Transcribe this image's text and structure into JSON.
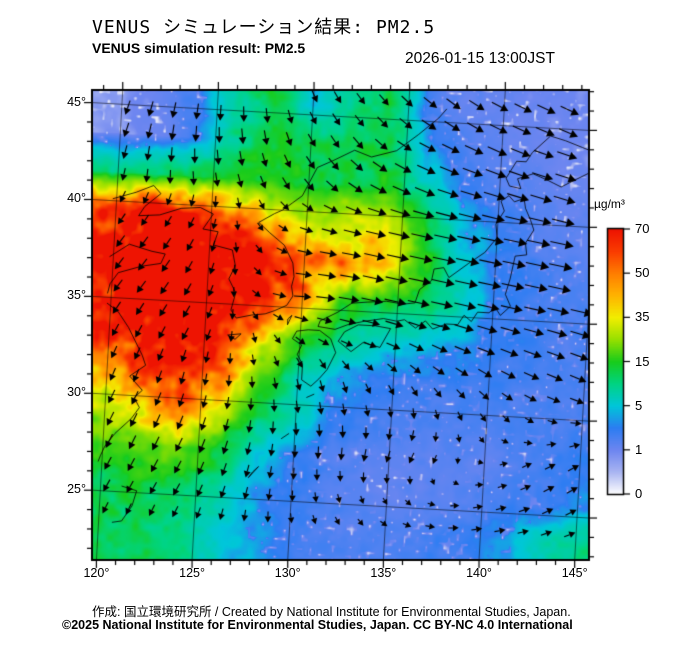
{
  "header": {
    "title_ja": "VENUS シミュレーション結果: PM2.5",
    "title_en": "VENUS simulation result: PM2.5",
    "datetime": "2026-01-15 13:00JST"
  },
  "footer": {
    "line1": "作成: 国立環境研究所 / Created by National Institute for Environmental Studies, Japan.",
    "line2": "©2025 National Institute for Environmental Studies, Japan. CC BY-NC 4.0 International"
  },
  "colorbar": {
    "unit": "µg/m³",
    "ticks": [
      "70",
      "50",
      "35",
      "15",
      "5",
      "1",
      "0"
    ]
  },
  "axes": {
    "lon_tick_labels": [
      "120°",
      "125°",
      "130°",
      "135°",
      "140°",
      "145°"
    ],
    "lon_tick_values": [
      120,
      125,
      130,
      135,
      140,
      145
    ],
    "lat_tick_labels": [
      "45°",
      "40°",
      "35°",
      "30°",
      "25°"
    ],
    "lat_tick_values": [
      45,
      40,
      35,
      30,
      25
    ]
  },
  "chart_data": {
    "type": "heatmap",
    "title": "VENUS simulation result: PM2.5",
    "variable": "PM2.5 concentration with surface wind vectors",
    "unit": "µg/m³",
    "lon_range": [
      119.7,
      145.8
    ],
    "lat_range": [
      24.0,
      45.7
    ],
    "scale_values": [
      0,
      1,
      5,
      15,
      35,
      50,
      70
    ],
    "scale_colors": [
      "#ffffff",
      "#6e86f0",
      "#00c6da",
      "#18cc1c",
      "#f2ee00",
      "#ff7e00",
      "#ee1402"
    ],
    "grid_lons": [
      120,
      122,
      124,
      126,
      128,
      130,
      132,
      134,
      136,
      138,
      140,
      142,
      144,
      146
    ],
    "grid_lats": [
      45.5,
      43.5,
      41.5,
      39.5,
      37.5,
      35.5,
      33.5,
      31.5,
      29.5,
      27.5,
      25.5,
      23.5
    ],
    "pm25": [
      [
        0.7,
        1.2,
        2.5,
        8,
        13,
        4,
        9,
        12,
        2.5,
        1.5,
        1.2,
        1,
        1,
        1.2
      ],
      [
        0.8,
        1.2,
        2.5,
        10,
        14,
        13,
        12,
        13,
        4,
        2,
        1.5,
        1.2,
        1,
        1
      ],
      [
        10,
        12,
        13,
        14,
        15,
        14,
        13,
        14,
        8,
        3,
        2,
        1.5,
        1.2,
        1.2
      ],
      [
        60,
        75,
        70,
        55,
        38,
        26,
        32,
        34,
        15,
        5,
        3,
        2,
        1.5,
        1.5
      ],
      [
        75,
        85,
        85,
        80,
        72,
        55,
        50,
        42,
        18,
        6,
        3,
        2.5,
        2,
        2
      ],
      [
        70,
        82,
        85,
        80,
        70,
        50,
        16,
        14,
        12,
        8,
        3,
        2.5,
        2,
        2
      ],
      [
        70,
        75,
        78,
        70,
        40,
        18,
        10,
        6,
        5,
        4,
        3,
        2.5,
        2,
        2
      ],
      [
        45,
        60,
        70,
        50,
        20,
        7,
        4,
        3,
        2.5,
        2.5,
        2.5,
        2,
        2,
        2
      ],
      [
        30,
        40,
        55,
        30,
        12,
        7,
        3,
        2.5,
        2,
        2,
        2,
        2,
        2,
        2.5
      ],
      [
        18,
        20,
        22,
        14,
        6,
        3,
        2,
        1.5,
        1.5,
        1.5,
        1.5,
        2,
        2.5,
        3
      ],
      [
        12,
        14,
        13,
        8,
        4,
        2.5,
        2,
        1.5,
        1.5,
        1.5,
        2,
        2.5,
        3,
        4
      ],
      [
        12,
        12,
        10,
        6,
        4,
        2.5,
        2,
        2,
        2,
        2.5,
        3,
        5,
        8,
        10
      ]
    ],
    "wind_u": [
      [
        -2,
        -2,
        -1,
        0,
        1,
        3,
        4,
        5,
        7,
        8,
        9,
        10,
        10,
        10
      ],
      [
        -2,
        -1,
        0,
        1,
        2,
        4,
        5,
        7,
        9,
        10,
        11,
        11,
        11,
        11
      ],
      [
        -1,
        0,
        1,
        2,
        3,
        5,
        7,
        9,
        11,
        12,
        12,
        12,
        12,
        12
      ],
      [
        -3,
        -3,
        -2,
        0,
        3,
        6,
        9,
        11,
        12,
        13,
        13,
        13,
        13,
        13
      ],
      [
        -4,
        -4,
        -3,
        0,
        4,
        8,
        10,
        12,
        13,
        13,
        13,
        13,
        13,
        13
      ],
      [
        -4,
        -4,
        -3,
        -1,
        5,
        9,
        11,
        12,
        12,
        12,
        12,
        12,
        12,
        12
      ],
      [
        -3,
        -3,
        -3,
        -1,
        2,
        5,
        6,
        7,
        8,
        9,
        10,
        10,
        10,
        10
      ],
      [
        -2,
        -2,
        -1,
        0,
        1,
        2,
        2,
        3,
        4,
        5,
        6,
        7,
        8,
        8
      ],
      [
        -3,
        -3,
        -2,
        -1,
        0,
        1,
        1,
        1,
        0,
        1,
        2,
        3,
        4,
        5
      ],
      [
        -3,
        -3,
        -3,
        -2,
        -1,
        0,
        0,
        -1,
        -2,
        -1,
        2,
        4,
        5,
        5
      ],
      [
        -3,
        -3,
        -3,
        -2,
        -1,
        0,
        1,
        1,
        2,
        3,
        4,
        5,
        5,
        5
      ],
      [
        -2,
        -2,
        -2,
        -1,
        0,
        1,
        2,
        3,
        4,
        5,
        5,
        5,
        5,
        5
      ]
    ],
    "wind_v": [
      [
        -7,
        -8,
        -8,
        -8,
        -7,
        -6,
        -5,
        -5,
        -5,
        -5,
        -4,
        -4,
        -4,
        -4
      ],
      [
        -7,
        -8,
        -8,
        -8,
        -7,
        -6,
        -6,
        -5,
        -4,
        -4,
        -4,
        -3,
        -3,
        -3
      ],
      [
        -6,
        -7,
        -7,
        -7,
        -6,
        -6,
        -5,
        -4,
        -4,
        -3,
        -3,
        -3,
        -3,
        -3
      ],
      [
        -5,
        -5,
        -5,
        -4,
        -3,
        -2,
        -2,
        -2,
        -2,
        -2,
        -2,
        -2,
        -2,
        -2
      ],
      [
        -6,
        -6,
        -6,
        -5,
        -3,
        -1,
        -1,
        -2,
        -2,
        -2,
        -2,
        -2,
        -2,
        -2
      ],
      [
        -6,
        -6,
        -6,
        -5,
        -2,
        0,
        -1,
        -2,
        -2,
        -2,
        -2,
        -2,
        -2,
        -2
      ],
      [
        -6,
        -6,
        -6,
        -5,
        -4,
        -3,
        -2,
        -2,
        -3,
        -3,
        -3,
        -3,
        -3,
        -3
      ],
      [
        -6,
        -6,
        -6,
        -5,
        -5,
        -5,
        -5,
        -4,
        -4,
        -4,
        -4,
        -3,
        -3,
        -3
      ],
      [
        -7,
        -7,
        -7,
        -6,
        -6,
        -6,
        -6,
        -5,
        -5,
        -4,
        -3,
        -2,
        0,
        1
      ],
      [
        -7,
        -7,
        -7,
        -7,
        -6,
        -6,
        -6,
        -6,
        -5,
        -3,
        0,
        2,
        3,
        3
      ],
      [
        -6,
        -6,
        -6,
        -6,
        -6,
        -5,
        -4,
        -3,
        -2,
        0,
        1,
        2,
        3,
        3
      ],
      [
        -5,
        -5,
        -5,
        -5,
        -5,
        -4,
        -3,
        -2,
        -1,
        0,
        1,
        1,
        2,
        2
      ]
    ],
    "coastlines": [
      [
        [
          119.8,
          40.1
        ],
        [
          121.0,
          40.5
        ],
        [
          121.9,
          40.9
        ],
        [
          122.3,
          40.5
        ],
        [
          121.5,
          39.8
        ],
        [
          121.2,
          39.3
        ],
        [
          122.3,
          39.4
        ],
        [
          123.4,
          39.8
        ],
        [
          124.4,
          39.9
        ],
        [
          125.1,
          39.6
        ],
        [
          124.6,
          38.8
        ],
        [
          125.4,
          38.7
        ],
        [
          125.2,
          38.0
        ],
        [
          126.2,
          37.8
        ],
        [
          126.4,
          37.0
        ],
        [
          126.1,
          36.3
        ],
        [
          126.5,
          35.6
        ],
        [
          126.3,
          34.7
        ],
        [
          126.6,
          34.3
        ],
        [
          127.4,
          34.5
        ],
        [
          128.1,
          34.6
        ],
        [
          128.6,
          34.8
        ],
        [
          129.2,
          35.1
        ],
        [
          129.5,
          35.6
        ],
        [
          129.4,
          36.1
        ],
        [
          129.5,
          36.6
        ],
        [
          129.4,
          37.3
        ],
        [
          128.9,
          38.2
        ],
        [
          128.1,
          38.8
        ],
        [
          127.5,
          39.3
        ],
        [
          128.3,
          39.8
        ],
        [
          128.7,
          40.0
        ],
        [
          129.2,
          40.4
        ],
        [
          129.7,
          40.8
        ],
        [
          130.4,
          42.3
        ],
        [
          131.2,
          42.7
        ],
        [
          132.3,
          43.3
        ],
        [
          133.2,
          43.0
        ],
        [
          134.5,
          43.4
        ],
        [
          135.6,
          44.3
        ],
        [
          136.6,
          45.2
        ],
        [
          137.0,
          45.7
        ]
      ],
      [
        [
          119.8,
          37.1
        ],
        [
          120.8,
          37.8
        ],
        [
          122.0,
          37.5
        ],
        [
          122.7,
          37.4
        ],
        [
          122.5,
          36.9
        ],
        [
          121.5,
          36.7
        ],
        [
          120.3,
          36.3
        ],
        [
          119.9,
          35.7
        ],
        [
          119.8,
          35.2
        ]
      ],
      [
        [
          119.8,
          34.7
        ],
        [
          120.4,
          34.3
        ],
        [
          121.0,
          33.5
        ],
        [
          121.8,
          32.1
        ],
        [
          122.0,
          31.6
        ],
        [
          121.2,
          31.0
        ],
        [
          121.9,
          30.3
        ],
        [
          121.5,
          29.9
        ],
        [
          121.8,
          29.4
        ],
        [
          121.4,
          28.8
        ],
        [
          120.6,
          28.0
        ],
        [
          120.1,
          27.3
        ],
        [
          119.9,
          26.8
        ],
        [
          119.8,
          26.5
        ]
      ],
      [
        [
          121.1,
          25.3
        ],
        [
          121.9,
          25.1
        ],
        [
          121.7,
          24.3
        ],
        [
          121.2,
          23.5
        ],
        [
          120.7,
          23.4
        ]
      ],
      [
        [
          129.6,
          33.4
        ],
        [
          130.1,
          33.1
        ],
        [
          129.9,
          32.6
        ],
        [
          130.2,
          32.1
        ],
        [
          130.2,
          31.3
        ],
        [
          130.7,
          31.0
        ],
        [
          131.1,
          31.4
        ],
        [
          131.5,
          31.9
        ],
        [
          131.9,
          32.8
        ],
        [
          131.6,
          33.5
        ],
        [
          131.0,
          33.9
        ],
        [
          130.4,
          33.9
        ],
        [
          129.8,
          33.8
        ],
        [
          129.6,
          33.4
        ]
      ],
      [
        [
          132.0,
          33.4
        ],
        [
          132.7,
          32.9
        ],
        [
          133.3,
          33.4
        ],
        [
          134.2,
          33.2
        ],
        [
          134.7,
          34.2
        ],
        [
          133.9,
          34.3
        ],
        [
          133.0,
          34.3
        ],
        [
          132.3,
          33.9
        ],
        [
          132.0,
          33.4
        ]
      ],
      [
        [
          130.9,
          34.1
        ],
        [
          131.8,
          34.0
        ],
        [
          132.5,
          34.3
        ],
        [
          133.3,
          34.5
        ],
        [
          134.3,
          34.7
        ],
        [
          135.0,
          34.6
        ],
        [
          135.4,
          34.7
        ],
        [
          136.0,
          34.3
        ],
        [
          136.5,
          34.7
        ],
        [
          136.9,
          34.3
        ],
        [
          137.6,
          34.6
        ],
        [
          138.2,
          34.6
        ],
        [
          138.5,
          35.1
        ],
        [
          138.9,
          34.8
        ],
        [
          139.2,
          35.3
        ],
        [
          139.8,
          35.3
        ],
        [
          140.1,
          35.6
        ],
        [
          140.4,
          35.2
        ],
        [
          140.9,
          35.7
        ],
        [
          140.6,
          36.3
        ],
        [
          140.8,
          37.1
        ],
        [
          141.0,
          38.3
        ],
        [
          141.6,
          38.4
        ],
        [
          141.5,
          39.0
        ],
        [
          141.9,
          39.7
        ],
        [
          141.7,
          40.2
        ],
        [
          141.4,
          40.8
        ],
        [
          141.3,
          41.3
        ],
        [
          140.8,
          41.1
        ],
        [
          140.5,
          41.4
        ],
        [
          140.1,
          41.1
        ],
        [
          140.3,
          40.6
        ],
        [
          139.9,
          39.9
        ],
        [
          140.0,
          39.2
        ],
        [
          139.4,
          38.4
        ],
        [
          138.6,
          37.8
        ],
        [
          137.6,
          37.0
        ],
        [
          137.3,
          37.5
        ],
        [
          136.8,
          37.4
        ],
        [
          136.7,
          36.8
        ],
        [
          136.1,
          36.3
        ],
        [
          135.9,
          35.6
        ],
        [
          135.3,
          35.5
        ],
        [
          134.4,
          35.6
        ],
        [
          133.4,
          35.5
        ],
        [
          132.6,
          35.4
        ],
        [
          131.9,
          34.9
        ],
        [
          131.0,
          34.4
        ],
        [
          130.9,
          34.1
        ]
      ],
      [
        [
          140.3,
          42.3
        ],
        [
          140.5,
          41.9
        ],
        [
          141.1,
          41.8
        ],
        [
          140.9,
          42.3
        ],
        [
          141.7,
          42.6
        ],
        [
          142.5,
          42.3
        ],
        [
          143.2,
          42.0
        ],
        [
          143.9,
          42.4
        ],
        [
          144.8,
          42.9
        ],
        [
          145.5,
          43.2
        ],
        [
          145.3,
          43.8
        ],
        [
          144.8,
          43.9
        ],
        [
          144.2,
          44.1
        ],
        [
          143.3,
          44.4
        ],
        [
          142.5,
          44.6
        ],
        [
          141.6,
          43.7
        ],
        [
          141.3,
          43.2
        ],
        [
          140.8,
          43.2
        ],
        [
          140.3,
          42.3
        ]
      ],
      [
        [
          126.2,
          33.4
        ],
        [
          126.9,
          33.5
        ],
        [
          126.6,
          33.2
        ],
        [
          126.2,
          33.4
        ]
      ],
      [
        [
          129.3,
          34.1
        ],
        [
          129.5,
          34.6
        ],
        [
          129.3,
          34.4
        ],
        [
          129.3,
          34.1
        ]
      ],
      [
        [
          127.7,
          26.1
        ],
        [
          128.2,
          26.7
        ],
        [
          127.9,
          26.4
        ],
        [
          127.7,
          26.1
        ]
      ],
      [
        [
          129.3,
          28.2
        ],
        [
          129.7,
          28.5
        ]
      ],
      [
        [
          130.5,
          30.4
        ],
        [
          130.9,
          30.6
        ]
      ]
    ]
  }
}
